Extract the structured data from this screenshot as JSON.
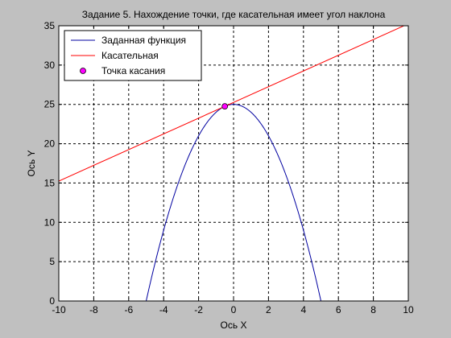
{
  "chart_data": {
    "type": "line",
    "title": "Задание 5. Нахождение точки, где касательная имеет угол наклона",
    "xlabel": "Ось X",
    "ylabel": "Ось Y",
    "xlim": [
      -10,
      10
    ],
    "ylim": [
      0,
      35
    ],
    "xticks": [
      -10,
      -8,
      -6,
      -4,
      -2,
      0,
      2,
      4,
      6,
      8,
      10
    ],
    "yticks": [
      0,
      5,
      10,
      15,
      20,
      25,
      30,
      35
    ],
    "grid": true,
    "legend_position": "top-left",
    "series": [
      {
        "name": "Заданная функция",
        "kind": "line",
        "color": "#0000a0",
        "x": [
          -5.0,
          -4.5,
          -4.0,
          -3.5,
          -3.0,
          -2.5,
          -2.0,
          -1.5,
          -1.0,
          -0.5,
          0.0,
          0.5,
          1.0,
          1.5,
          2.0,
          2.5,
          3.0,
          3.5,
          4.0,
          4.5,
          5.0
        ],
        "y": [
          0.0,
          4.75,
          9.0,
          12.75,
          16.0,
          18.75,
          21.0,
          22.75,
          24.0,
          24.75,
          25.0,
          24.75,
          24.0,
          22.75,
          21.0,
          18.75,
          16.0,
          12.75,
          9.0,
          4.75,
          0.0
        ]
      },
      {
        "name": "Касательная",
        "kind": "line",
        "color": "#ff0000",
        "x": [
          -10,
          10
        ],
        "y": [
          15.25,
          35.25
        ]
      },
      {
        "name": "Точка касания",
        "kind": "scatter",
        "color": "#ff00ff",
        "x": [
          -0.5
        ],
        "y": [
          24.75
        ]
      }
    ]
  }
}
